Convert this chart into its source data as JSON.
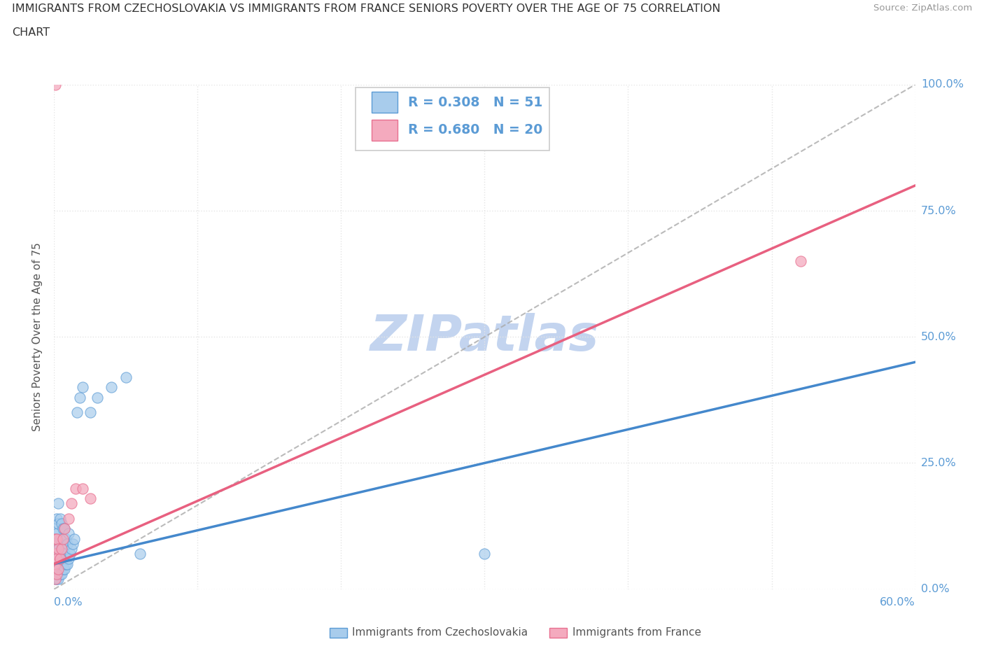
{
  "title_line1": "IMMIGRANTS FROM CZECHOSLOVAKIA VS IMMIGRANTS FROM FRANCE SENIORS POVERTY OVER THE AGE OF 75 CORRELATION",
  "title_line2": "CHART",
  "source": "Source: ZipAtlas.com",
  "ylabel_label": "Seniors Poverty Over the Age of 75",
  "legend_label1": "Immigrants from Czechoslovakia",
  "legend_label2": "Immigrants from France",
  "R1": "0.308",
  "N1": "51",
  "R2": "0.680",
  "N2": "20",
  "color1": "#A8CCEC",
  "color2": "#F4AABE",
  "edge1": "#5B9BD5",
  "edge2": "#E87090",
  "trendline1_color": "#4488CC",
  "trendline2_color": "#E86080",
  "dashed_line_color": "#AAAAAA",
  "watermark": "ZIPatlas",
  "watermark_color": "#BDD0EE",
  "tick_label_color": "#5B9BD5",
  "grid_color": "#E5E5E5",
  "xlim": [
    0.0,
    0.6
  ],
  "ylim": [
    0.0,
    1.0
  ],
  "czecho_x": [
    0.001,
    0.001,
    0.001,
    0.001,
    0.001,
    0.001,
    0.002,
    0.002,
    0.002,
    0.002,
    0.002,
    0.002,
    0.003,
    0.003,
    0.003,
    0.003,
    0.003,
    0.003,
    0.004,
    0.004,
    0.004,
    0.004,
    0.005,
    0.005,
    0.005,
    0.005,
    0.006,
    0.006,
    0.006,
    0.007,
    0.007,
    0.007,
    0.008,
    0.008,
    0.009,
    0.009,
    0.01,
    0.01,
    0.011,
    0.012,
    0.013,
    0.014,
    0.016,
    0.018,
    0.02,
    0.025,
    0.03,
    0.04,
    0.05,
    0.06,
    0.3
  ],
  "czecho_y": [
    0.02,
    0.03,
    0.05,
    0.07,
    0.09,
    0.12,
    0.02,
    0.04,
    0.06,
    0.08,
    0.11,
    0.14,
    0.02,
    0.04,
    0.06,
    0.09,
    0.13,
    0.17,
    0.03,
    0.06,
    0.1,
    0.14,
    0.03,
    0.06,
    0.09,
    0.13,
    0.04,
    0.08,
    0.12,
    0.04,
    0.07,
    0.12,
    0.05,
    0.1,
    0.05,
    0.09,
    0.06,
    0.11,
    0.07,
    0.08,
    0.09,
    0.1,
    0.35,
    0.38,
    0.4,
    0.35,
    0.38,
    0.4,
    0.42,
    0.07,
    0.07
  ],
  "france_x": [
    0.001,
    0.001,
    0.001,
    0.001,
    0.002,
    0.002,
    0.002,
    0.003,
    0.003,
    0.004,
    0.005,
    0.006,
    0.007,
    0.01,
    0.012,
    0.015,
    0.02,
    0.025,
    0.52,
    0.001
  ],
  "france_y": [
    0.02,
    0.05,
    0.07,
    0.1,
    0.03,
    0.06,
    0.1,
    0.04,
    0.08,
    0.06,
    0.08,
    0.1,
    0.12,
    0.14,
    0.17,
    0.2,
    0.2,
    0.18,
    0.65,
    1.0
  ],
  "trendline1_x0": 0.0,
  "trendline1_y0": 0.05,
  "trendline1_x1": 0.6,
  "trendline1_y1": 0.45,
  "trendline2_x0": 0.0,
  "trendline2_y0": 0.05,
  "trendline2_x1": 0.6,
  "trendline2_y1": 0.8
}
